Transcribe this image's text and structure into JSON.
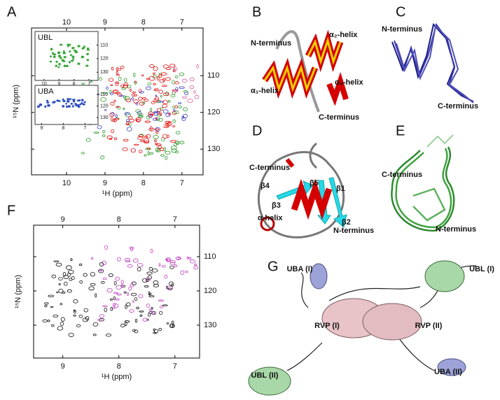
{
  "panels": [
    {
      "label": "A",
      "type": "nmr_spectrum",
      "x_label": "¹H (ppm)",
      "y_label": "¹⁵N (ppm)",
      "xlim": [
        10.91,
        6.45
      ],
      "ylim": [
        97,
        137
      ],
      "xticks": [
        10,
        9,
        8,
        7
      ],
      "yticks": [
        110,
        120,
        130
      ],
      "insets": [
        {
          "label": "UBL",
          "xlim": [
            10.6,
            6.4
          ],
          "ylim": [
            100,
            136
          ],
          "xticks": [
            10,
            9,
            8,
            7
          ],
          "yticks": [
            110,
            120,
            130
          ]
        },
        {
          "label": "UBA",
          "xlim": [
            9.3,
            6.4
          ],
          "ylim": [
            102,
            136
          ],
          "xticks": [
            9,
            8,
            7
          ],
          "yticks": [
            110,
            120,
            130
          ]
        }
      ]
    },
    {
      "label": "B",
      "annotations": [
        "N-terminus",
        "α₂-helix",
        "α₁-helix",
        "α₃-helix",
        "C-terminus"
      ]
    },
    {
      "label": "C",
      "annotations": [
        "N-terminus",
        "C-terminus"
      ]
    },
    {
      "label": "D",
      "annotations": [
        "C-terminus",
        "β4",
        "β5",
        "β1",
        "β3",
        "α-helix",
        "β2",
        "N-terminus"
      ]
    },
    {
      "label": "E",
      "annotations": [
        "C-terminus",
        "N-terminus"
      ]
    },
    {
      "label": "F",
      "type": "nmr_spectrum",
      "x_label": "¹H (ppm)",
      "y_label": "¹⁵N (ppm)",
      "xlim": [
        9.52,
        6.56
      ],
      "ylim": [
        100.8,
        139.6
      ],
      "xticks": [
        9,
        8,
        7
      ],
      "yticks": [
        110,
        120,
        130
      ]
    },
    {
      "label": "G",
      "annotations": [
        "UBA (I)",
        "UBL (I)",
        "RVP (I)",
        "RVP (II)",
        "UBL (II)",
        "UBA (II)"
      ]
    }
  ]
}
